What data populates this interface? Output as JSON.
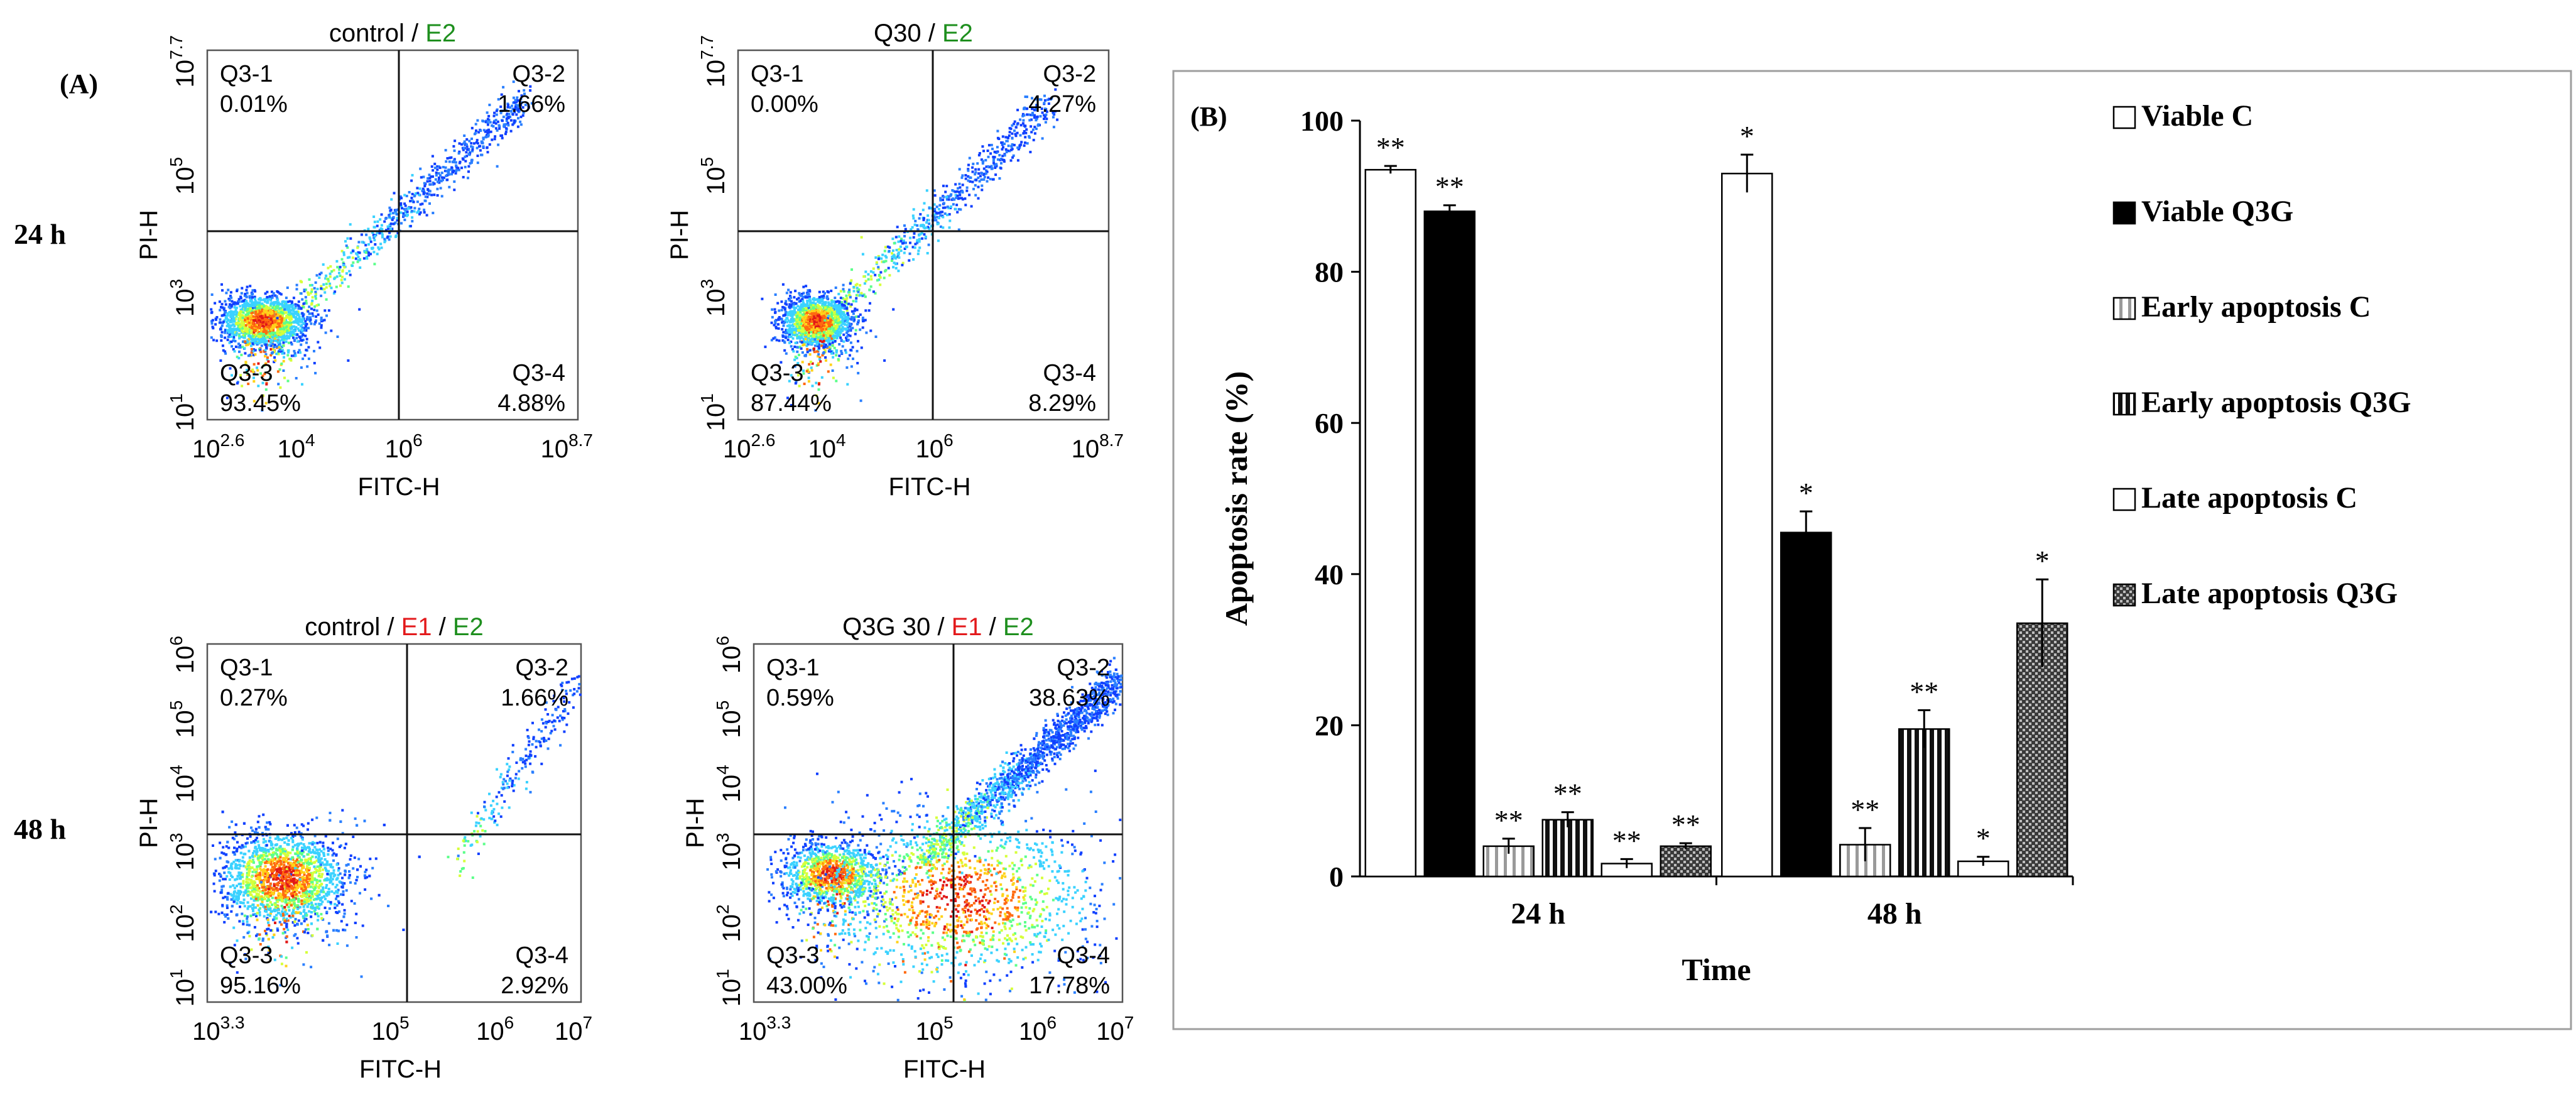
{
  "panel_a_label": "(A)",
  "panel_b_label": "(B)",
  "row_labels": {
    "r24": "24 h",
    "r48": "48 h"
  },
  "chart_data": [
    {
      "type": "scatter",
      "title_parts": [
        {
          "text": "control / ",
          "color": "#000000"
        },
        {
          "text": "E2",
          "color": "#1e8f1e"
        }
      ],
      "xlabel": "FITC-H",
      "ylabel": "PI-H",
      "x_tick_labels": [
        {
          "base": "10",
          "exp": "2.6"
        },
        {
          "base": "10",
          "exp": "4"
        },
        {
          "base": "10",
          "exp": "6"
        },
        {
          "base": "10",
          "exp": "8.7"
        }
      ],
      "y_tick_labels": [
        {
          "base": "10",
          "exp": "1"
        },
        {
          "base": "10",
          "exp": "3"
        },
        {
          "base": "10",
          "exp": "5"
        },
        {
          "base": "10",
          "exp": "7.7"
        }
      ],
      "quadrants": [
        {
          "name": "Q3-1",
          "percent": "0.01%"
        },
        {
          "name": "Q3-2",
          "percent": "1.66%"
        },
        {
          "name": "Q3-3",
          "percent": "93.45%"
        },
        {
          "name": "Q3-4",
          "percent": "4.88%"
        }
      ]
    },
    {
      "type": "scatter",
      "title_parts": [
        {
          "text": "Q30 / ",
          "color": "#000000"
        },
        {
          "text": "E2",
          "color": "#1e8f1e"
        }
      ],
      "xlabel": "FITC-H",
      "ylabel": "PI-H",
      "x_tick_labels": [
        {
          "base": "10",
          "exp": "2.6"
        },
        {
          "base": "10",
          "exp": "4"
        },
        {
          "base": "10",
          "exp": "6"
        },
        {
          "base": "10",
          "exp": "8.7"
        }
      ],
      "y_tick_labels": [
        {
          "base": "10",
          "exp": "1"
        },
        {
          "base": "10",
          "exp": "3"
        },
        {
          "base": "10",
          "exp": "5"
        },
        {
          "base": "10",
          "exp": "7.7"
        }
      ],
      "quadrants": [
        {
          "name": "Q3-1",
          "percent": "0.00%"
        },
        {
          "name": "Q3-2",
          "percent": "4.27%"
        },
        {
          "name": "Q3-3",
          "percent": "87.44%"
        },
        {
          "name": "Q3-4",
          "percent": "8.29%"
        }
      ]
    },
    {
      "type": "scatter",
      "title_parts": [
        {
          "text": "control / ",
          "color": "#000000"
        },
        {
          "text": "E1",
          "color": "#e31a1c"
        },
        {
          "text": " / ",
          "color": "#000000"
        },
        {
          "text": "E2",
          "color": "#1e8f1e"
        }
      ],
      "xlabel": "FITC-H",
      "ylabel": "PI-H",
      "x_tick_labels": [
        {
          "base": "10",
          "exp": "3.3"
        },
        {
          "base": "10",
          "exp": "5"
        },
        {
          "base": "10",
          "exp": "6"
        },
        {
          "base": "10",
          "exp": "7"
        }
      ],
      "y_tick_labels": [
        {
          "base": "10",
          "exp": "1"
        },
        {
          "base": "10",
          "exp": "2"
        },
        {
          "base": "10",
          "exp": "3"
        },
        {
          "base": "10",
          "exp": "4"
        },
        {
          "base": "10",
          "exp": "5"
        },
        {
          "base": "10",
          "exp": "6"
        }
      ],
      "quadrants": [
        {
          "name": "Q3-1",
          "percent": "0.27%"
        },
        {
          "name": "Q3-2",
          "percent": "1.66%"
        },
        {
          "name": "Q3-3",
          "percent": "95.16%"
        },
        {
          "name": "Q3-4",
          "percent": "2.92%"
        }
      ]
    },
    {
      "type": "scatter",
      "title_parts": [
        {
          "text": "Q3G 30 / ",
          "color": "#000000"
        },
        {
          "text": "E1",
          "color": "#e31a1c"
        },
        {
          "text": " / ",
          "color": "#000000"
        },
        {
          "text": "E2",
          "color": "#1e8f1e"
        }
      ],
      "xlabel": "FITC-H",
      "ylabel": "PI-H",
      "x_tick_labels": [
        {
          "base": "10",
          "exp": "3.3"
        },
        {
          "base": "10",
          "exp": "5"
        },
        {
          "base": "10",
          "exp": "6"
        },
        {
          "base": "10",
          "exp": "7"
        }
      ],
      "y_tick_labels": [
        {
          "base": "10",
          "exp": "1"
        },
        {
          "base": "10",
          "exp": "2"
        },
        {
          "base": "10",
          "exp": "3"
        },
        {
          "base": "10",
          "exp": "4"
        },
        {
          "base": "10",
          "exp": "5"
        },
        {
          "base": "10",
          "exp": "6"
        }
      ],
      "quadrants": [
        {
          "name": "Q3-1",
          "percent": "0.59%"
        },
        {
          "name": "Q3-2",
          "percent": "38.63%"
        },
        {
          "name": "Q3-3",
          "percent": "43.00%"
        },
        {
          "name": "Q3-4",
          "percent": "17.78%"
        }
      ]
    },
    {
      "type": "bar",
      "xlabel": "Time",
      "ylabel": "Apoptosis rate (%)",
      "ylim": [
        0,
        100
      ],
      "y_ticks": [
        0,
        20,
        40,
        60,
        80,
        100
      ],
      "categories": [
        "24 h",
        "48 h"
      ],
      "series": [
        {
          "name": "Viable C",
          "values": [
            93.5,
            93.0
          ],
          "errors": [
            0.5,
            2.5
          ],
          "sig": [
            "**",
            "*"
          ],
          "pattern": "white"
        },
        {
          "name": "Viable Q3G",
          "values": [
            88.0,
            45.5
          ],
          "errors": [
            0.8,
            2.8
          ],
          "sig": [
            "**",
            "*"
          ],
          "pattern": "black"
        },
        {
          "name": "Early apoptosis C",
          "values": [
            4.0,
            4.2
          ],
          "errors": [
            1.0,
            2.2
          ],
          "sig": [
            "**",
            "**"
          ],
          "pattern": "vlines-light"
        },
        {
          "name": "Early apoptosis Q3G",
          "values": [
            7.5,
            19.5
          ],
          "errors": [
            1.0,
            2.5
          ],
          "sig": [
            "**",
            "**"
          ],
          "pattern": "vlines-dense"
        },
        {
          "name": "Late apoptosis C",
          "values": [
            1.7,
            2.0
          ],
          "errors": [
            0.6,
            0.6
          ],
          "sig": [
            "**",
            "*"
          ],
          "pattern": "white"
        },
        {
          "name": "Late apoptosis Q3G",
          "values": [
            4.0,
            33.5
          ],
          "errors": [
            0.4,
            5.8
          ],
          "sig": [
            "**",
            "*"
          ],
          "pattern": "checker"
        }
      ]
    }
  ]
}
